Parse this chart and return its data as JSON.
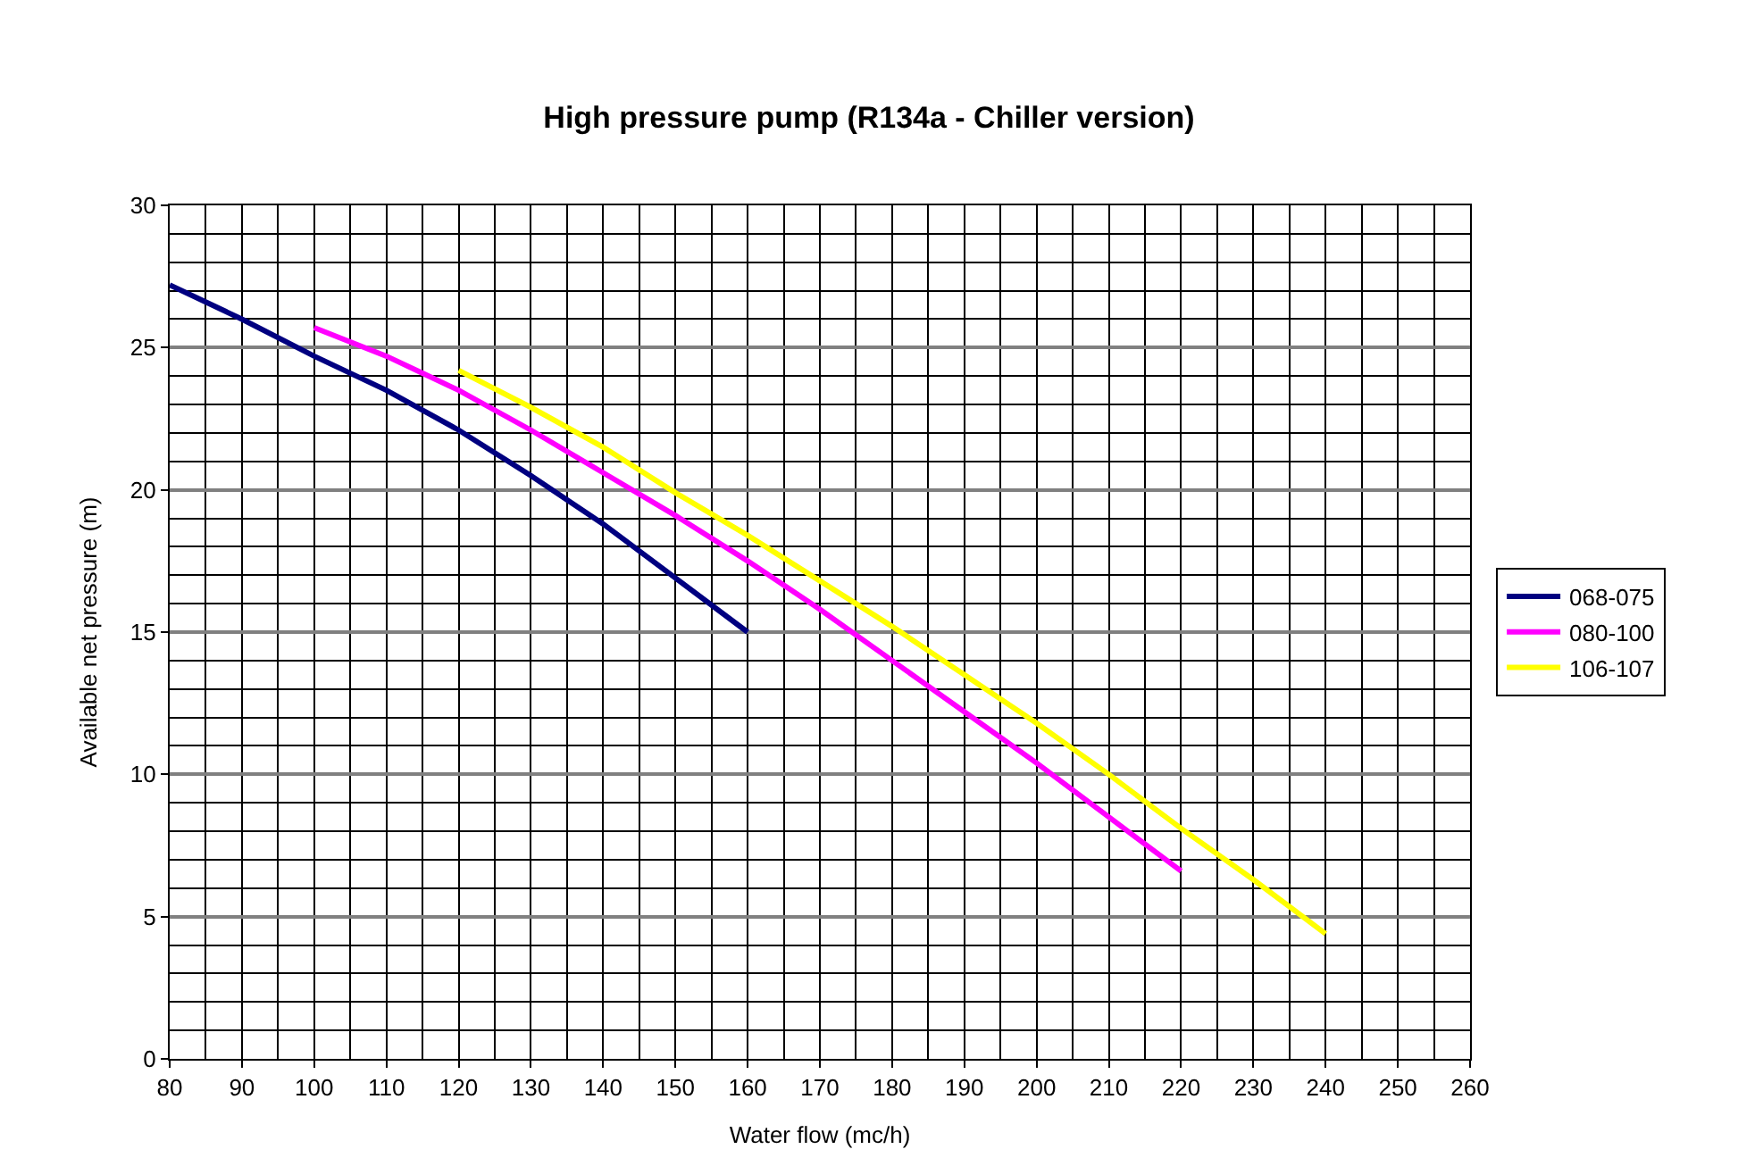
{
  "chart_data": {
    "type": "line",
    "title": "High pressure pump (R134a - Chiller version)",
    "xlabel": "Water flow (mc/h)",
    "ylabel": "Available net pressure (m)",
    "xlim": [
      80,
      260
    ],
    "xticks": [
      80,
      90,
      100,
      110,
      120,
      130,
      140,
      150,
      160,
      170,
      180,
      190,
      200,
      210,
      220,
      230,
      240,
      250,
      260
    ],
    "ylim": [
      0,
      30
    ],
    "yticks": [
      0,
      5,
      10,
      15,
      20,
      25,
      30
    ],
    "grid": true,
    "legend": "right",
    "marker": "none",
    "line_style": "solid",
    "series": [
      {
        "name": "068-075",
        "color": "#000080",
        "x": [
          80,
          90,
          100,
          110,
          120,
          130,
          140,
          150,
          160
        ],
        "values": [
          27.2,
          26,
          24.7,
          23.5,
          22.1,
          20.5,
          18.8,
          16.9,
          15.0
        ]
      },
      {
        "name": "080-100",
        "color": "#ff00ff",
        "x": [
          100,
          110,
          115,
          120,
          130,
          140,
          150,
          160,
          170,
          180,
          190,
          200,
          210,
          220
        ],
        "values": [
          25.7,
          24.7,
          24.1,
          23.5,
          22.1,
          20.6,
          19.1,
          17.5,
          15.8,
          14.0,
          12.2,
          10.4,
          8.5,
          6.6
        ]
      },
      {
        "name": "106-107",
        "color": "#ffff00",
        "x": [
          120,
          130,
          140,
          150,
          160,
          170,
          180,
          190,
          200,
          210,
          220,
          230,
          240
        ],
        "values": [
          24.2,
          22.9,
          21.5,
          19.9,
          18.4,
          16.8,
          15.2,
          13.5,
          11.8,
          10.0,
          8.1,
          6.3,
          4.4
        ]
      }
    ]
  }
}
